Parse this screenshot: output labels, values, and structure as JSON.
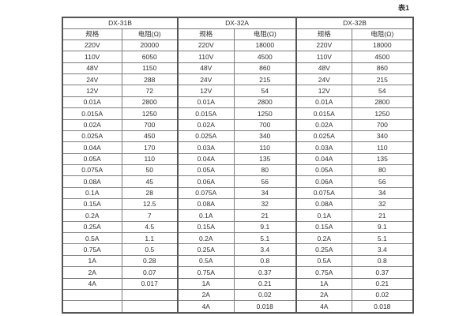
{
  "page": {
    "caption": "表1"
  },
  "table": {
    "groups": [
      {
        "title": "DX-31B",
        "col_headers": [
          "规格",
          "电阻(Ω)"
        ]
      },
      {
        "title": "DX-32A",
        "col_headers": [
          "规格",
          "电阻(Ω)"
        ]
      },
      {
        "title": "DX-32B",
        "col_headers": [
          "规格",
          "电阻(Ω)"
        ]
      }
    ],
    "rows": [
      [
        "220V",
        "20000",
        "220V",
        "18000",
        "220V",
        "18000"
      ],
      [
        "110V",
        "6050",
        "110V",
        "4500",
        "110V",
        "4500"
      ],
      [
        "48V",
        "1150",
        "48V",
        "860",
        "48V",
        "860"
      ],
      [
        "24V",
        "288",
        "24V",
        "215",
        "24V",
        "215"
      ],
      [
        "12V",
        "72",
        "12V",
        "54",
        "12V",
        "54"
      ],
      [
        "0.01A",
        "2800",
        "0.01A",
        "2800",
        "0.01A",
        "2800"
      ],
      [
        "0.015A",
        "1250",
        "0.015A",
        "1250",
        "0.015A",
        "1250"
      ],
      [
        "0.02A",
        "700",
        "0.02A",
        "700",
        "0.02A",
        "700"
      ],
      [
        "0.025A",
        "450",
        "0.025A",
        "340",
        "0.025A",
        "340"
      ],
      [
        "0.04A",
        "170",
        "0.03A",
        "110",
        "0.03A",
        "110"
      ],
      [
        "0.05A",
        "110",
        "0.04A",
        "135",
        "0.04A",
        "135"
      ],
      [
        "0.075A",
        "50",
        "0.05A",
        "80",
        "0.05A",
        "80"
      ],
      [
        "0.08A",
        "45",
        "0.06A",
        "56",
        "0.06A",
        "56"
      ],
      [
        "0.1A",
        "28",
        "0.075A",
        "34",
        "0.075A",
        "34"
      ],
      [
        "0.15A",
        "12.5",
        "0.08A",
        "32",
        "0.08A",
        "32"
      ],
      [
        "0.2A",
        "7",
        "0.1A",
        "21",
        "0.1A",
        "21"
      ],
      [
        "0.25A",
        "4.5",
        "0.15A",
        "9.1",
        "0.15A",
        "9.1"
      ],
      [
        "0.5A",
        "1.1",
        "0.2A",
        "5.1",
        "0.2A",
        "5.1"
      ],
      [
        "0.75A",
        "0.5",
        "0.25A",
        "3.4",
        "0.25A",
        "3.4"
      ],
      [
        "1A",
        "0.28",
        "0.5A",
        "0.8",
        "0.5A",
        "0.8"
      ],
      [
        "2A",
        "0.07",
        "0.75A",
        "0.37",
        "0.75A",
        "0.37"
      ],
      [
        "4A",
        "0.017",
        "1A",
        "0.21",
        "1A",
        "0.21"
      ],
      [
        "",
        "",
        "2A",
        "0.02",
        "2A",
        "0.02"
      ],
      [
        "",
        "",
        "4A",
        "0.018",
        "4A",
        "0.018"
      ]
    ]
  }
}
